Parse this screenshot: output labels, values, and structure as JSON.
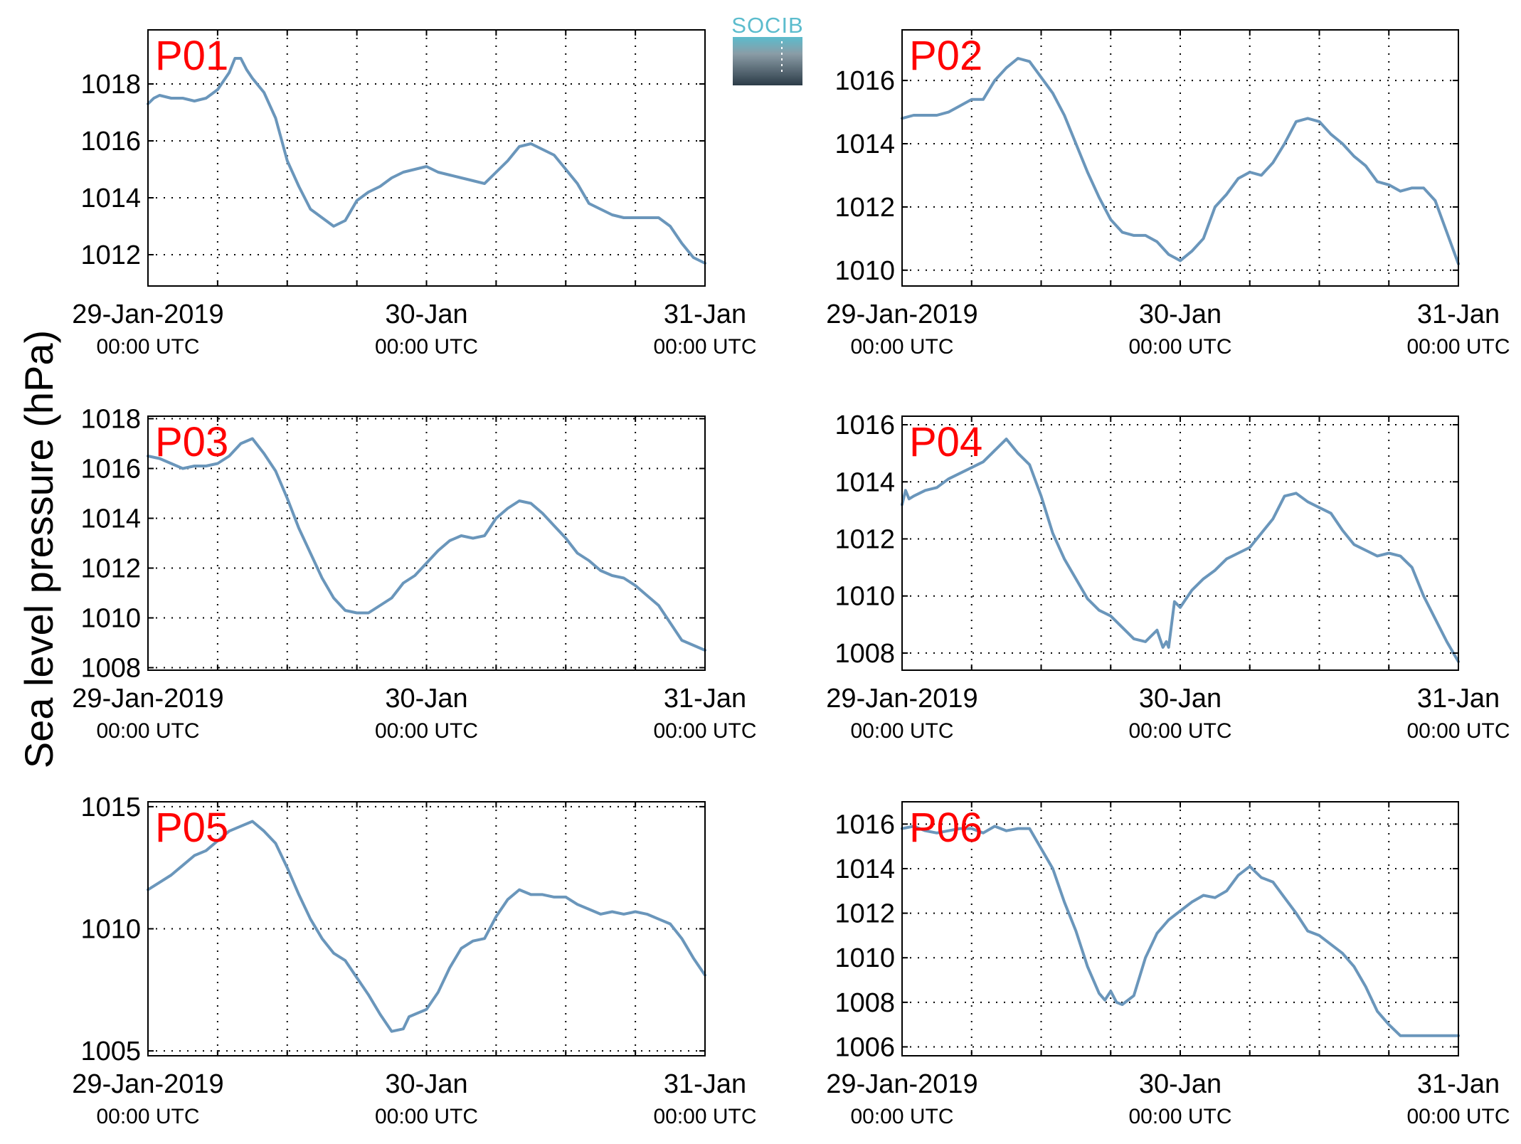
{
  "figure": {
    "ylabel": "Sea level pressure (hPa)",
    "logo_text": "SOCIB",
    "line_color": "#6a96bb",
    "title_color": "#ff0000"
  },
  "chart_data": [
    {
      "type": "line",
      "title": "P01",
      "xlim": [
        0,
        48
      ],
      "ylim": [
        1010.9,
        1019.9
      ],
      "yticks": [
        1012,
        1014,
        1016,
        1018
      ],
      "xticks": [
        0,
        24,
        48
      ],
      "xtick_labels": [
        "29-Jan-2019",
        "30-Jan",
        "31-Jan"
      ],
      "xtick_sublabels": [
        "00:00 UTC",
        "00:00 UTC",
        "00:00 UTC"
      ],
      "series": [
        {
          "x": [
            0,
            0.5,
            1,
            2,
            3,
            4,
            5,
            6,
            7,
            7.5,
            8,
            8.5,
            9,
            10,
            11,
            12,
            13,
            14,
            15,
            16,
            17,
            18,
            19,
            20,
            21,
            22,
            23,
            24,
            25,
            26,
            27,
            28,
            29,
            30,
            31,
            32,
            33,
            34,
            35,
            36,
            37,
            38,
            39,
            40,
            41,
            42,
            43,
            44,
            45,
            46,
            47,
            48
          ],
          "y": [
            1017.3,
            1017.5,
            1017.6,
            1017.5,
            1017.5,
            1017.4,
            1017.5,
            1017.8,
            1018.4,
            1018.9,
            1018.9,
            1018.5,
            1018.2,
            1017.7,
            1016.8,
            1015.3,
            1014.4,
            1013.6,
            1013.3,
            1013.0,
            1013.2,
            1013.9,
            1014.2,
            1014.4,
            1014.7,
            1014.9,
            1015.0,
            1015.1,
            1014.9,
            1014.8,
            1014.7,
            1014.6,
            1014.5,
            1014.9,
            1015.3,
            1015.8,
            1015.9,
            1015.7,
            1015.5,
            1015.0,
            1014.5,
            1013.8,
            1013.6,
            1013.4,
            1013.3,
            1013.3,
            1013.3,
            1013.3,
            1013.0,
            1012.4,
            1011.9,
            1011.7
          ]
        }
      ]
    },
    {
      "type": "line",
      "title": "P02",
      "xlim": [
        0,
        48
      ],
      "ylim": [
        1009.5,
        1017.6
      ],
      "yticks": [
        1010,
        1012,
        1014,
        1016
      ],
      "xticks": [
        0,
        24,
        48
      ],
      "xtick_labels": [
        "29-Jan-2019",
        "30-Jan",
        "31-Jan"
      ],
      "xtick_sublabels": [
        "00:00 UTC",
        "00:00 UTC",
        "00:00 UTC"
      ],
      "series": [
        {
          "x": [
            0,
            1,
            2,
            3,
            4,
            5,
            6,
            7,
            8,
            9,
            10,
            11,
            12,
            13,
            14,
            15,
            16,
            17,
            18,
            19,
            20,
            21,
            22,
            23,
            24,
            25,
            26,
            27,
            28,
            29,
            30,
            31,
            32,
            33,
            34,
            35,
            36,
            37,
            38,
            39,
            40,
            41,
            42,
            43,
            44,
            45,
            46,
            47,
            48
          ],
          "y": [
            1014.8,
            1014.9,
            1014.9,
            1014.9,
            1015.0,
            1015.2,
            1015.4,
            1015.4,
            1016.0,
            1016.4,
            1016.7,
            1016.6,
            1016.1,
            1015.6,
            1014.9,
            1014.0,
            1013.1,
            1012.3,
            1011.6,
            1011.2,
            1011.1,
            1011.1,
            1010.9,
            1010.5,
            1010.3,
            1010.6,
            1011.0,
            1012.0,
            1012.4,
            1012.9,
            1013.1,
            1013.0,
            1013.4,
            1014.0,
            1014.7,
            1014.8,
            1014.7,
            1014.3,
            1014.0,
            1013.6,
            1013.3,
            1012.8,
            1012.7,
            1012.5,
            1012.6,
            1012.6,
            1012.2,
            1011.2,
            1010.2
          ]
        }
      ]
    },
    {
      "type": "line",
      "title": "P03",
      "xlim": [
        0,
        48
      ],
      "ylim": [
        1007.9,
        1018.1
      ],
      "yticks": [
        1008,
        1010,
        1012,
        1014,
        1016,
        1018
      ],
      "xticks": [
        0,
        24,
        48
      ],
      "xtick_labels": [
        "29-Jan-2019",
        "30-Jan",
        "31-Jan"
      ],
      "xtick_sublabels": [
        "00:00 UTC",
        "00:00 UTC",
        "00:00 UTC"
      ],
      "series": [
        {
          "x": [
            0,
            1,
            2,
            3,
            4,
            5,
            6,
            7,
            8,
            9,
            10,
            11,
            12,
            13,
            14,
            15,
            16,
            17,
            18,
            19,
            20,
            21,
            22,
            23,
            24,
            25,
            26,
            27,
            28,
            29,
            30,
            31,
            32,
            33,
            34,
            35,
            36,
            37,
            38,
            39,
            40,
            41,
            42,
            43,
            44,
            45,
            46,
            47,
            48
          ],
          "y": [
            1016.5,
            1016.4,
            1016.2,
            1016.0,
            1016.1,
            1016.1,
            1016.2,
            1016.5,
            1017.0,
            1017.2,
            1016.6,
            1015.9,
            1014.8,
            1013.6,
            1012.6,
            1011.6,
            1010.8,
            1010.3,
            1010.2,
            1010.2,
            1010.5,
            1010.8,
            1011.4,
            1011.7,
            1012.2,
            1012.7,
            1013.1,
            1013.3,
            1013.2,
            1013.3,
            1014.0,
            1014.4,
            1014.7,
            1014.6,
            1014.2,
            1013.7,
            1013.2,
            1012.6,
            1012.3,
            1011.9,
            1011.7,
            1011.6,
            1011.3,
            1010.9,
            1010.5,
            1009.8,
            1009.1,
            1008.9,
            1008.7
          ]
        }
      ]
    },
    {
      "type": "line",
      "title": "P04",
      "xlim": [
        0,
        48
      ],
      "ylim": [
        1007.4,
        1016.3
      ],
      "yticks": [
        1008,
        1010,
        1012,
        1014,
        1016
      ],
      "xticks": [
        0,
        24,
        48
      ],
      "xtick_labels": [
        "29-Jan-2019",
        "30-Jan",
        "31-Jan"
      ],
      "xtick_sublabels": [
        "00:00 UTC",
        "00:00 UTC",
        "00:00 UTC"
      ],
      "series": [
        {
          "x": [
            0,
            0.3,
            0.6,
            1,
            2,
            3,
            4,
            5,
            6,
            7,
            8,
            9,
            10,
            11,
            12,
            13,
            14,
            15,
            16,
            17,
            18,
            19,
            20,
            21,
            22,
            22.5,
            22.8,
            23,
            23.5,
            24,
            24.5,
            25,
            26,
            27,
            28,
            29,
            30,
            31,
            32,
            33,
            34,
            35,
            36,
            37,
            38,
            39,
            40,
            41,
            42,
            43,
            44,
            45,
            46,
            47,
            48
          ],
          "y": [
            1013.2,
            1013.7,
            1013.4,
            1013.5,
            1013.7,
            1013.8,
            1014.1,
            1014.3,
            1014.5,
            1014.7,
            1015.1,
            1015.5,
            1015.0,
            1014.6,
            1013.5,
            1012.2,
            1011.3,
            1010.6,
            1009.9,
            1009.5,
            1009.3,
            1008.9,
            1008.5,
            1008.4,
            1008.8,
            1008.2,
            1008.4,
            1008.2,
            1009.8,
            1009.6,
            1009.9,
            1010.2,
            1010.6,
            1010.9,
            1011.3,
            1011.5,
            1011.7,
            1012.2,
            1012.7,
            1013.5,
            1013.6,
            1013.3,
            1013.1,
            1012.9,
            1012.3,
            1011.8,
            1011.6,
            1011.4,
            1011.5,
            1011.4,
            1011.0,
            1010.0,
            1009.2,
            1008.4,
            1007.7
          ]
        }
      ]
    },
    {
      "type": "line",
      "title": "P05",
      "xlim": [
        0,
        48
      ],
      "ylim": [
        1004.8,
        1015.2
      ],
      "yticks": [
        1005,
        1010,
        1015
      ],
      "xticks": [
        0,
        24,
        48
      ],
      "xtick_labels": [
        "29-Jan-2019",
        "30-Jan",
        "31-Jan"
      ],
      "xtick_sublabels": [
        "00:00 UTC",
        "00:00 UTC",
        "00:00 UTC"
      ],
      "series": [
        {
          "x": [
            0,
            1,
            2,
            3,
            4,
            5,
            6,
            7,
            8,
            9,
            10,
            11,
            12,
            13,
            14,
            15,
            16,
            17,
            18,
            19,
            20,
            21,
            22,
            22.5,
            23,
            24,
            25,
            26,
            27,
            28,
            29,
            30,
            31,
            32,
            33,
            34,
            35,
            36,
            37,
            38,
            39,
            40,
            41,
            42,
            43,
            44,
            45,
            46,
            47,
            48
          ],
          "y": [
            1011.6,
            1011.9,
            1012.2,
            1012.6,
            1013.0,
            1013.2,
            1013.6,
            1014.0,
            1014.2,
            1014.4,
            1014.0,
            1013.5,
            1012.5,
            1011.4,
            1010.4,
            1009.6,
            1009.0,
            1008.7,
            1008.0,
            1007.3,
            1006.5,
            1005.8,
            1005.9,
            1006.4,
            1006.5,
            1006.7,
            1007.4,
            1008.4,
            1009.2,
            1009.5,
            1009.6,
            1010.5,
            1011.2,
            1011.6,
            1011.4,
            1011.4,
            1011.3,
            1011.3,
            1011.0,
            1010.8,
            1010.6,
            1010.7,
            1010.6,
            1010.7,
            1010.6,
            1010.4,
            1010.2,
            1009.6,
            1008.8,
            1008.1
          ]
        }
      ]
    },
    {
      "type": "line",
      "title": "P06",
      "xlim": [
        0,
        48
      ],
      "ylim": [
        1005.6,
        1017.0
      ],
      "yticks": [
        1006,
        1008,
        1010,
        1012,
        1014,
        1016
      ],
      "xticks": [
        0,
        24,
        48
      ],
      "xtick_labels": [
        "29-Jan-2019",
        "30-Jan",
        "31-Jan"
      ],
      "xtick_sublabels": [
        "00:00 UTC",
        "00:00 UTC",
        "00:00 UTC"
      ],
      "series": [
        {
          "x": [
            0,
            1,
            2,
            3,
            4,
            5,
            6,
            7,
            8,
            9,
            10,
            11,
            12,
            13,
            14,
            15,
            16,
            17,
            17.5,
            18,
            18.5,
            19,
            20,
            21,
            22,
            23,
            24,
            25,
            26,
            27,
            28,
            29,
            30,
            31,
            32,
            33,
            34,
            35,
            36,
            37,
            38,
            39,
            40,
            41,
            42,
            43,
            44,
            45,
            46,
            47,
            48
          ],
          "y": [
            1015.8,
            1015.9,
            1015.7,
            1015.6,
            1015.7,
            1015.8,
            1015.8,
            1015.6,
            1015.9,
            1015.7,
            1015.8,
            1015.8,
            1014.9,
            1014.0,
            1012.5,
            1011.2,
            1009.6,
            1008.4,
            1008.1,
            1008.5,
            1008.0,
            1007.9,
            1008.3,
            1010.0,
            1011.1,
            1011.7,
            1012.1,
            1012.5,
            1012.8,
            1012.7,
            1013.0,
            1013.7,
            1014.1,
            1013.6,
            1013.4,
            1012.7,
            1012.0,
            1011.2,
            1011.0,
            1010.6,
            1010.2,
            1009.6,
            1008.7,
            1007.6,
            1007.0,
            1006.5,
            1006.5,
            1006.5,
            1006.5,
            1006.5,
            1006.5
          ]
        }
      ]
    }
  ]
}
